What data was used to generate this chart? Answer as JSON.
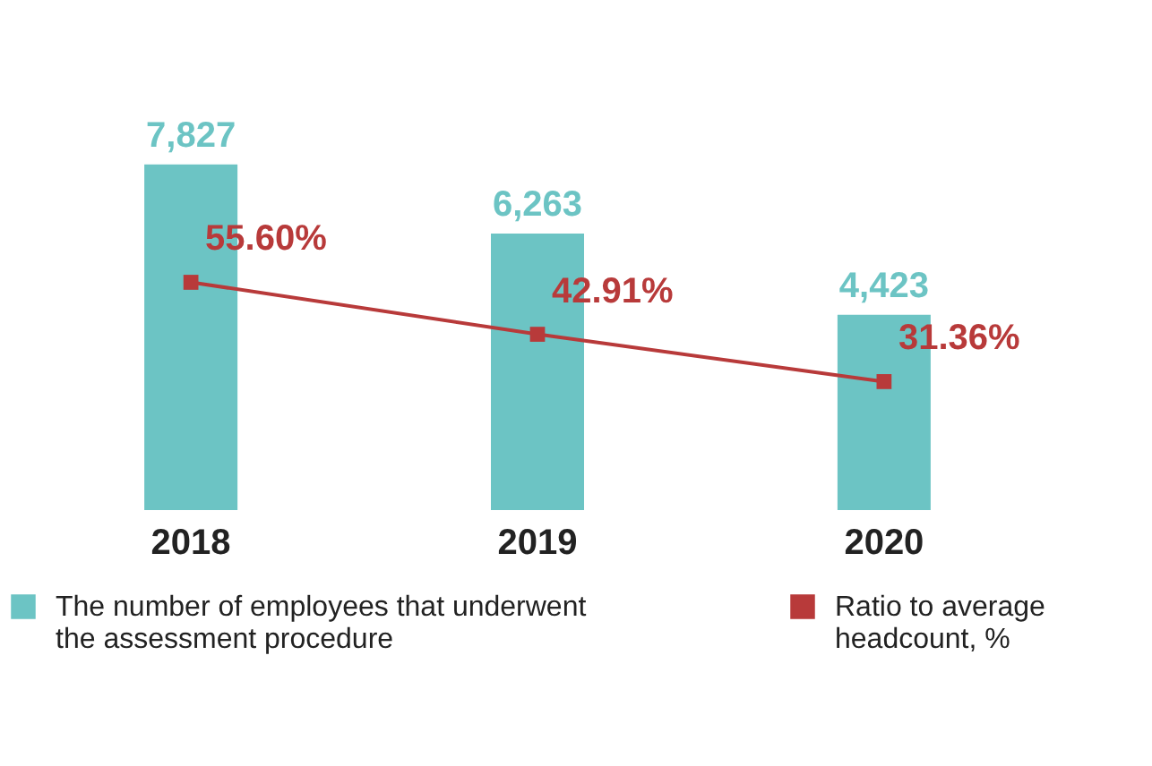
{
  "chart_data": {
    "type": "bar",
    "categories": [
      "2018",
      "2019",
      "2020"
    ],
    "series": [
      {
        "name": "The number of employees that underwent the assessment procedure",
        "color": "#6cc4c4",
        "values": [
          7827,
          6263,
          4423
        ],
        "value_labels": [
          "7,827",
          "6,263",
          "4,423"
        ]
      },
      {
        "name": "Ratio to average headcount, %",
        "color": "#b83a3a",
        "type": "line",
        "axis": "y2",
        "marker": "square",
        "values": [
          55.6,
          42.91,
          31.36
        ],
        "value_labels": [
          "55.60%",
          "42.91%",
          "31.36%"
        ]
      }
    ],
    "data_labels": true,
    "grid": false,
    "legend": "bottom",
    "tick_labels": "x"
  }
}
